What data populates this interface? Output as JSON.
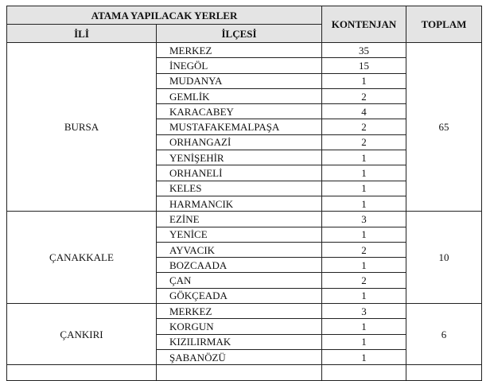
{
  "header": {
    "group": "ATAMA YAPILACAK YERLER",
    "ili": "İLİ",
    "ilcesi": "İLÇESİ",
    "kontenjan": "KONTENJAN",
    "toplam": "TOPLAM"
  },
  "provinces": [
    {
      "name": "BURSA",
      "total": "65",
      "districts": [
        {
          "name": "MERKEZ",
          "quota": "35"
        },
        {
          "name": "İNEGÖL",
          "quota": "15"
        },
        {
          "name": "MUDANYA",
          "quota": "1"
        },
        {
          "name": "GEMLİK",
          "quota": "2"
        },
        {
          "name": "KARACABEY",
          "quota": "4"
        },
        {
          "name": "MUSTAFAKEMALPAŞA",
          "quota": "2"
        },
        {
          "name": "ORHANGAZİ",
          "quota": "2"
        },
        {
          "name": "YENİŞEHİR",
          "quota": "1"
        },
        {
          "name": "ORHANELİ",
          "quota": "1"
        },
        {
          "name": "KELES",
          "quota": "1"
        },
        {
          "name": "HARMANCIK",
          "quota": "1"
        }
      ]
    },
    {
      "name": "ÇANAKKALE",
      "total": "10",
      "districts": [
        {
          "name": "EZİNE",
          "quota": "3"
        },
        {
          "name": "YENİCE",
          "quota": "1"
        },
        {
          "name": "AYVACIK",
          "quota": "2"
        },
        {
          "name": "BOZCAADA",
          "quota": "1"
        },
        {
          "name": "ÇAN",
          "quota": "2"
        },
        {
          "name": "GÖKÇEADA",
          "quota": "1"
        }
      ]
    },
    {
      "name": "ÇANKIRI",
      "total": "6",
      "districts": [
        {
          "name": "MERKEZ",
          "quota": "3"
        },
        {
          "name": "KORGUN",
          "quota": "1"
        },
        {
          "name": "KIZILIRMAK",
          "quota": "1"
        },
        {
          "name": "ŞABANÖZÜ",
          "quota": "1"
        }
      ]
    }
  ]
}
